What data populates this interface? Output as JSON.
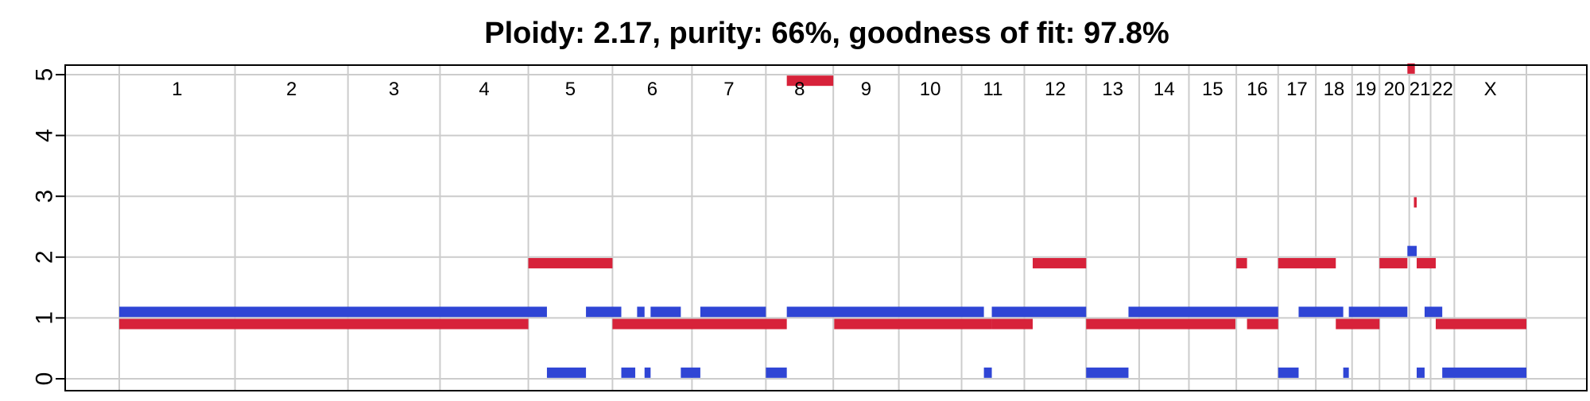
{
  "chart_data": {
    "type": "segments",
    "title": "Ploidy: 2.17, purity: 66%, goodness of fit: 97.8%",
    "ylim": [
      0,
      5
    ],
    "y_ticks": [
      "0",
      "1",
      "2",
      "3",
      "4",
      "5"
    ],
    "grid": true,
    "chromosomes": [
      {
        "label": "1",
        "start": 0,
        "end": 249
      },
      {
        "label": "2",
        "start": 249,
        "end": 492
      },
      {
        "label": "3",
        "start": 492,
        "end": 690
      },
      {
        "label": "4",
        "start": 690,
        "end": 880
      },
      {
        "label": "5",
        "start": 880,
        "end": 1061
      },
      {
        "label": "6",
        "start": 1061,
        "end": 1232
      },
      {
        "label": "7",
        "start": 1232,
        "end": 1391
      },
      {
        "label": "8",
        "start": 1391,
        "end": 1536
      },
      {
        "label": "9",
        "start": 1536,
        "end": 1677
      },
      {
        "label": "10",
        "start": 1677,
        "end": 1812
      },
      {
        "label": "11",
        "start": 1812,
        "end": 1947
      },
      {
        "label": "12",
        "start": 1947,
        "end": 2080
      },
      {
        "label": "13",
        "start": 2080,
        "end": 2194
      },
      {
        "label": "14",
        "start": 2194,
        "end": 2301
      },
      {
        "label": "15",
        "start": 2301,
        "end": 2403
      },
      {
        "label": "16",
        "start": 2403,
        "end": 2493
      },
      {
        "label": "17",
        "start": 2493,
        "end": 2574
      },
      {
        "label": "18",
        "start": 2574,
        "end": 2652
      },
      {
        "label": "19",
        "start": 2652,
        "end": 2711
      },
      {
        "label": "20",
        "start": 2711,
        "end": 2775
      },
      {
        "label": "21",
        "start": 2775,
        "end": 2821
      },
      {
        "label": "22",
        "start": 2821,
        "end": 2872
      },
      {
        "label": "X",
        "start": 2872,
        "end": 3027
      }
    ],
    "series": [
      {
        "color": "#d7223a",
        "segments": [
          {
            "start": 0,
            "end": 880,
            "value": 0.9
          },
          {
            "start": 880,
            "end": 1061,
            "value": 1.9
          },
          {
            "start": 1061,
            "end": 1436,
            "value": 0.9
          },
          {
            "start": 1436,
            "end": 1536,
            "value": 4.9
          },
          {
            "start": 1538,
            "end": 1877,
            "value": 0.9
          },
          {
            "start": 1877,
            "end": 1965,
            "value": 0.9
          },
          {
            "start": 1965,
            "end": 2080,
            "value": 1.9
          },
          {
            "start": 2080,
            "end": 2401,
            "value": 0.9
          },
          {
            "start": 2403,
            "end": 2426,
            "value": 1.9
          },
          {
            "start": 2426,
            "end": 2493,
            "value": 0.9
          },
          {
            "start": 2493,
            "end": 2617,
            "value": 1.9
          },
          {
            "start": 2617,
            "end": 2711,
            "value": 0.9
          },
          {
            "start": 2711,
            "end": 2771,
            "value": 1.9
          },
          {
            "start": 2771,
            "end": 2787,
            "value": 5.1
          },
          {
            "start": 2785,
            "end": 2791,
            "value": 2.9
          },
          {
            "start": 2791,
            "end": 2832,
            "value": 1.9
          },
          {
            "start": 2832,
            "end": 3027,
            "value": 0.9
          }
        ]
      },
      {
        "color": "#2f45d5",
        "segments": [
          {
            "start": 0,
            "end": 920,
            "value": 1.1
          },
          {
            "start": 920,
            "end": 1004,
            "value": 0.1
          },
          {
            "start": 1004,
            "end": 1080,
            "value": 1.1
          },
          {
            "start": 1080,
            "end": 1110,
            "value": 0.1
          },
          {
            "start": 1114,
            "end": 1130,
            "value": 1.1
          },
          {
            "start": 1130,
            "end": 1143,
            "value": 0.1
          },
          {
            "start": 1143,
            "end": 1208,
            "value": 1.1
          },
          {
            "start": 1208,
            "end": 1250,
            "value": 0.1
          },
          {
            "start": 1250,
            "end": 1391,
            "value": 1.1
          },
          {
            "start": 1391,
            "end": 1436,
            "value": 0.1
          },
          {
            "start": 1436,
            "end": 1860,
            "value": 1.1
          },
          {
            "start": 1860,
            "end": 1877,
            "value": 0.1
          },
          {
            "start": 1877,
            "end": 2080,
            "value": 1.1
          },
          {
            "start": 2080,
            "end": 2171,
            "value": 0.1
          },
          {
            "start": 2171,
            "end": 2493,
            "value": 1.1
          },
          {
            "start": 2493,
            "end": 2537,
            "value": 0.1
          },
          {
            "start": 2537,
            "end": 2633,
            "value": 1.1
          },
          {
            "start": 2633,
            "end": 2645,
            "value": 0.1
          },
          {
            "start": 2645,
            "end": 2771,
            "value": 1.1
          },
          {
            "start": 2771,
            "end": 2791,
            "value": 2.1
          },
          {
            "start": 2791,
            "end": 2808,
            "value": 0.1
          },
          {
            "start": 2808,
            "end": 2846,
            "value": 1.1
          },
          {
            "start": 2846,
            "end": 3027,
            "value": 0.1
          }
        ]
      }
    ]
  }
}
